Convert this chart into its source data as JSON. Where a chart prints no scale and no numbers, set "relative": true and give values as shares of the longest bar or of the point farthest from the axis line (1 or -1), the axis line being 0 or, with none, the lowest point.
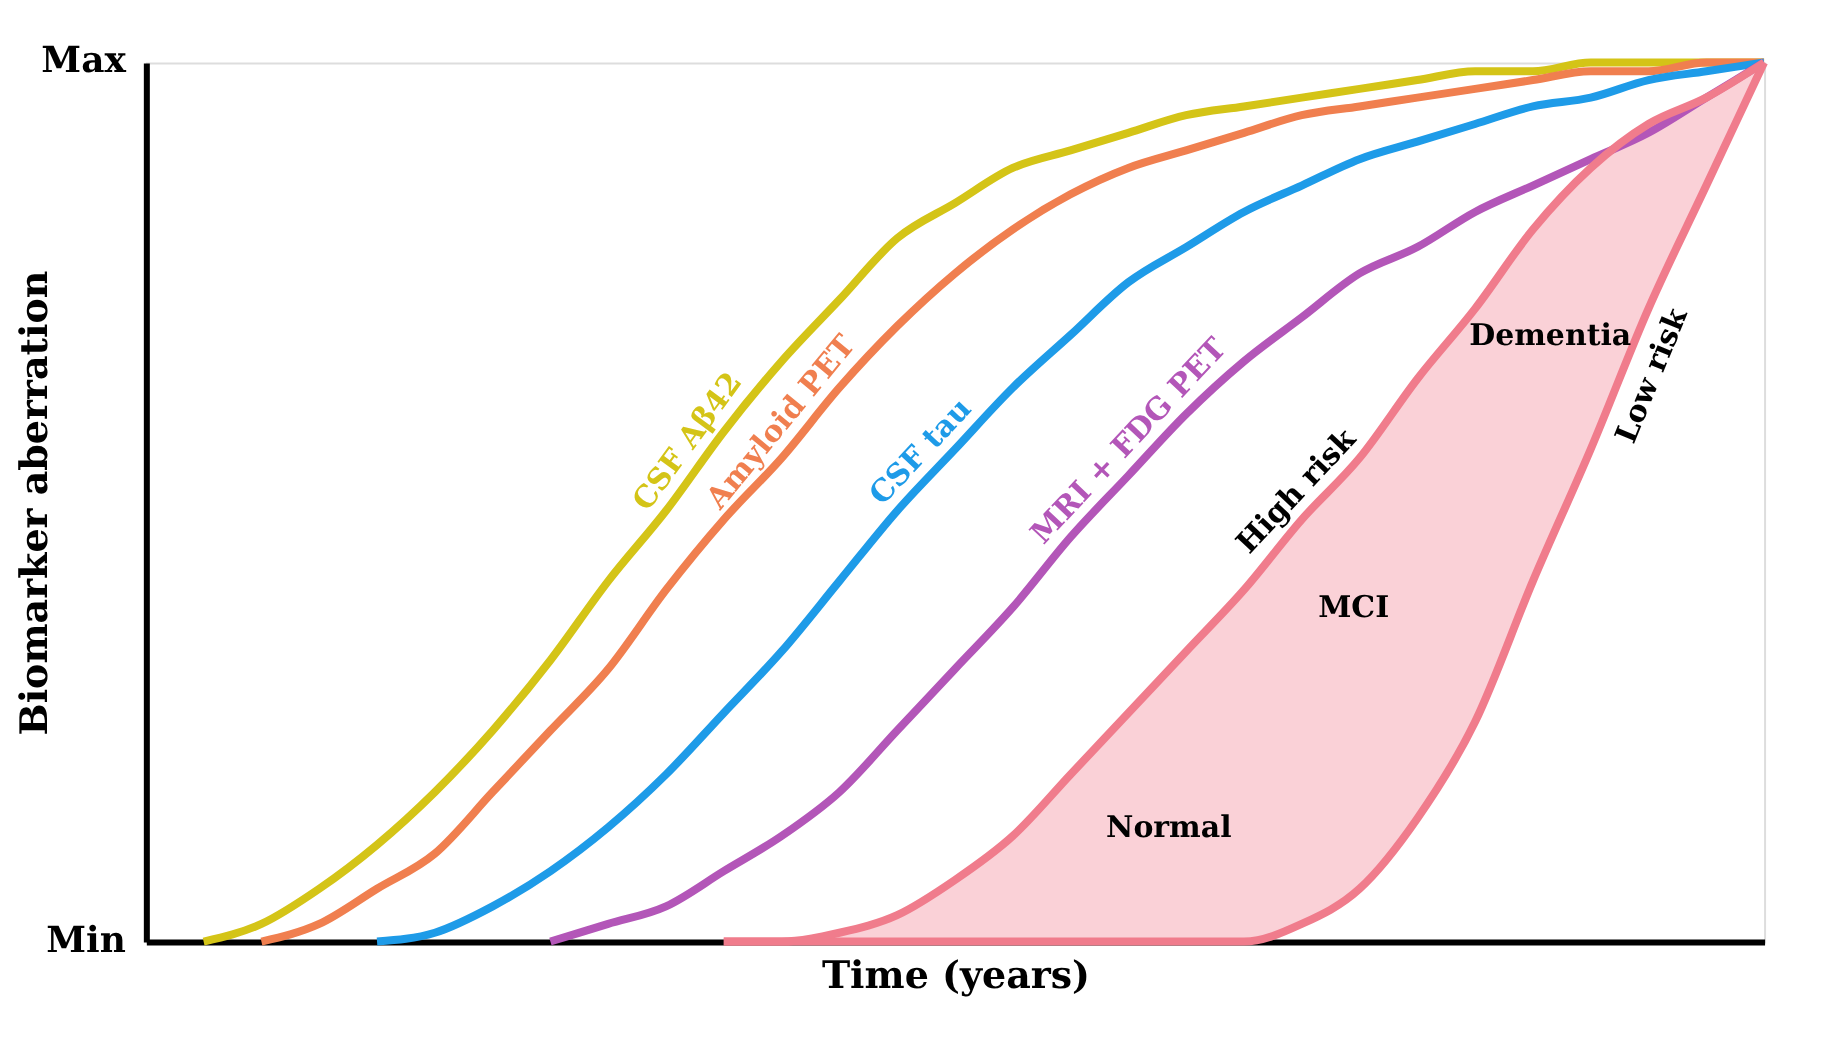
{
  "chart_data": {
    "type": "line",
    "xlabel": "Time (years)",
    "ylabel": "Biomarker aberration",
    "categories": [
      null,
      null,
      null,
      null,
      null,
      null,
      null,
      null,
      null,
      null,
      null,
      null,
      null,
      null,
      null,
      null,
      null,
      null,
      null,
      null,
      null,
      null,
      null,
      null,
      null,
      null,
      null,
      null,
      null
    ],
    "relative": true,
    "tick_labels": false,
    "grid": false,
    "line_style": "solid",
    "marker": "none",
    "annotations": [
      "Max",
      "Min",
      "Normal",
      "MCI",
      "Dementia",
      "High risk",
      "Low risk"
    ],
    "series": [
      {
        "name": "CSF Aβ42",
        "color": "#d4c417",
        "values": [
          null,
          0,
          0.02,
          0.06,
          0.11,
          0.17,
          0.24,
          0.32,
          0.41,
          0.49,
          0.58,
          0.66,
          0.73,
          0.8,
          0.84,
          0.88,
          0.9,
          0.92,
          0.94,
          0.95,
          0.96,
          0.97,
          0.98,
          0.99,
          0.99,
          1,
          1,
          1,
          1
        ]
      },
      {
        "name": "Amyloid PET",
        "color": "#f07f4f",
        "values": [
          null,
          null,
          0,
          0.02,
          0.06,
          0.1,
          0.17,
          0.24,
          0.31,
          0.4,
          0.48,
          0.55,
          0.63,
          0.7,
          0.76,
          0.81,
          0.85,
          0.88,
          0.9,
          0.92,
          0.94,
          0.95,
          0.96,
          0.97,
          0.98,
          0.99,
          0.99,
          1,
          1
        ]
      },
      {
        "name": "CSF tau",
        "color": "#1e9be8",
        "values": [
          null,
          null,
          null,
          null,
          0,
          0.01,
          0.04,
          0.08,
          0.13,
          0.19,
          0.26,
          0.33,
          0.41,
          0.49,
          0.56,
          0.63,
          0.69,
          0.75,
          0.79,
          0.83,
          0.86,
          0.89,
          0.91,
          0.93,
          0.95,
          0.96,
          0.98,
          0.99,
          1
        ]
      },
      {
        "name": "MRI + FDG PET",
        "color": "#b356b8",
        "values": [
          null,
          null,
          null,
          null,
          null,
          null,
          null,
          0,
          0.02,
          0.04,
          0.08,
          0.12,
          0.17,
          0.24,
          0.31,
          0.38,
          0.46,
          0.53,
          0.6,
          0.66,
          0.71,
          0.76,
          0.79,
          0.83,
          0.86,
          0.89,
          0.92,
          0.96,
          1
        ]
      },
      {
        "color": "#f07c8c",
        "values": [
          null,
          null,
          null,
          null,
          null,
          null,
          null,
          null,
          null,
          null,
          0,
          0,
          0.01,
          0.03,
          0.07,
          0.12,
          0.19,
          0.26,
          0.33,
          0.4,
          0.48,
          0.55,
          0.64,
          0.72,
          0.81,
          0.88,
          0.93,
          0.96,
          1
        ],
        "lower": [
          null,
          null,
          null,
          null,
          null,
          null,
          null,
          null,
          null,
          null,
          0,
          0,
          0,
          0,
          0,
          0,
          0,
          0,
          0,
          0,
          0.02,
          0.06,
          0.14,
          0.25,
          0.41,
          0.56,
          0.72,
          0.86,
          1
        ],
        "upper": [
          null,
          null,
          null,
          null,
          null,
          null,
          null,
          null,
          null,
          null,
          0,
          0,
          0.01,
          0.03,
          0.07,
          0.12,
          0.19,
          0.26,
          0.33,
          0.4,
          0.48,
          0.55,
          0.64,
          0.72,
          0.81,
          0.88,
          0.93,
          0.96,
          1
        ]
      }
    ]
  }
}
